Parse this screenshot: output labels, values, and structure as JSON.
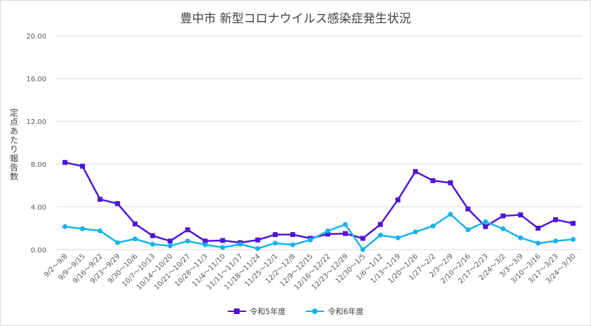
{
  "chart_data": {
    "type": "line",
    "title": "豊中市 新型コロナウイルス感染症発生状況",
    "ylabel": "定点あたり報告数",
    "xlabel": "",
    "ylim": [
      0,
      20
    ],
    "yticks": [
      "0.00",
      "4.00",
      "8.00",
      "12.00",
      "16.00",
      "20.00"
    ],
    "grid": true,
    "legend_position": "bottom",
    "categories": [
      "9/2～9/8",
      "9/9～9/15",
      "9/16～9/22",
      "9/23～9/29",
      "9/30～10/6",
      "10/7～10/13",
      "10/14～10/20",
      "10/21～10/27",
      "10/28～11/3",
      "11/4～11/10",
      "11/11～11/17",
      "11/18～11/24",
      "11/25～12/1",
      "12/2～12/8",
      "12/9～12/15",
      "12/16～12/22",
      "12/23～12/29",
      "12/30～1/5",
      "1/6～1/12",
      "1/13～1/19",
      "1/20～1/26",
      "1/27～2/2",
      "2/3～2/9",
      "2/10～2/16",
      "2/17～2/23",
      "2/24～3/2",
      "3/3～3/9",
      "3/10～3/16",
      "3/17～3/23",
      "3/24～3/30"
    ],
    "series": [
      {
        "name": "令和5年度",
        "color": "#4f14d6",
        "marker": "square",
        "values": [
          8.15,
          7.8,
          4.7,
          4.3,
          2.4,
          1.3,
          0.8,
          1.85,
          0.8,
          0.85,
          0.65,
          0.9,
          1.4,
          1.4,
          1.05,
          1.45,
          1.5,
          1.05,
          2.35,
          4.65,
          7.3,
          6.45,
          6.25,
          3.8,
          2.15,
          3.15,
          3.25,
          2.0,
          2.8,
          2.45
        ]
      },
      {
        "name": "令和6年度",
        "color": "#15b3eb",
        "marker": "circle",
        "values": [
          2.15,
          1.95,
          1.75,
          0.65,
          1.0,
          0.5,
          0.35,
          0.8,
          0.45,
          0.2,
          0.5,
          0.1,
          0.6,
          0.45,
          0.9,
          1.75,
          2.35,
          0.0,
          1.35,
          1.1,
          1.65,
          2.2,
          3.3,
          1.85,
          2.6,
          1.95,
          1.1,
          0.6,
          0.8,
          0.95
        ]
      }
    ]
  }
}
